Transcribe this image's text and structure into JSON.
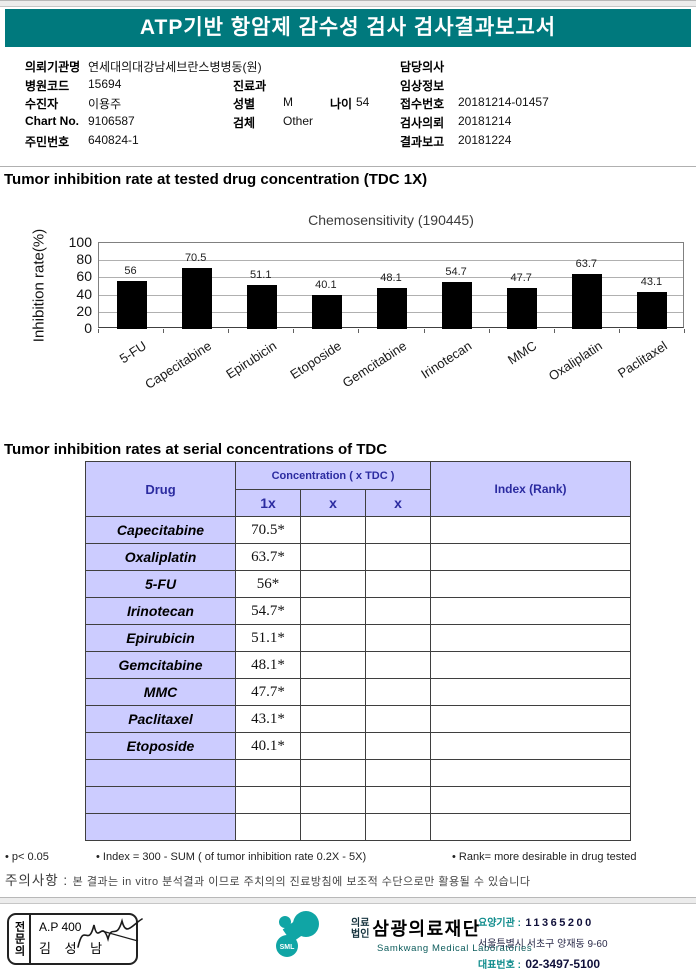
{
  "colors": {
    "teal": "#00797d",
    "lavender": "#ccccff",
    "header_text": "#2b2ba0",
    "logo_teal": "#10a5a5",
    "bar": "#000000"
  },
  "banner": {
    "title": "ATP기반 항암제 감수성 검사 검사결과보고서"
  },
  "patient": {
    "org_label": "의뢰기관명",
    "org_value": "연세대의대강남세브란스병병동(원)",
    "code_label": "병원코드",
    "code_value": "15694",
    "name_label": "수진자",
    "name_value": "이용주",
    "chart_label": "Chart No.",
    "chart_value": "9106587",
    "resident_label": "주민번호",
    "resident_value": "640824-1",
    "dept_label": "진료과",
    "dept_value": "",
    "sex_label": "성별",
    "sex_value": "M",
    "age_label": "나이",
    "age_value": "54",
    "specimen_label": "검체",
    "specimen_value": "Other",
    "doctor_label": "담당의사",
    "doctor_value": "",
    "clinical_label": "임상정보",
    "clinical_value": "",
    "receipt_label": "접수번호",
    "receipt_value": "20181214-01457",
    "request_label": "검사의뢰",
    "request_value": "20181214",
    "report_label": "결과보고",
    "report_value": "20181224"
  },
  "sections": {
    "chart_section_title": "Tumor inhibition rate at tested drug concentration (TDC 1X)",
    "table_section_title": "Tumor inhibition rates at serial concentrations of TDC"
  },
  "chart_data": {
    "type": "bar",
    "title": "Chemosensitivity (190445)",
    "ylabel": "Inhibition rate(%)",
    "ylim": [
      0,
      100
    ],
    "yticks": [
      0,
      20,
      40,
      60,
      80,
      100
    ],
    "grid": true,
    "legend": "none",
    "categories": [
      "5-FU",
      "Capecitabine",
      "Epirubicin",
      "Etoposide",
      "Gemcitabine",
      "Irinotecan",
      "MMC",
      "Oxaliplatin",
      "Paclitaxel"
    ],
    "values": [
      56,
      70.5,
      51.1,
      40.1,
      48.1,
      54.7,
      47.7,
      63.7,
      43.1
    ]
  },
  "table": {
    "drug_header": "Drug",
    "conc_header": "Concentration ( x TDC )",
    "conc_cols": [
      "1x",
      "x",
      "x"
    ],
    "index_header": "Index (Rank)",
    "rows": [
      {
        "drug": "Capecitabine",
        "v1": "70.5*",
        "v2": "",
        "v3": "",
        "index": ""
      },
      {
        "drug": "Oxaliplatin",
        "v1": "63.7*",
        "v2": "",
        "v3": "",
        "index": ""
      },
      {
        "drug": "5-FU",
        "v1": "56*",
        "v2": "",
        "v3": "",
        "index": ""
      },
      {
        "drug": "Irinotecan",
        "v1": "54.7*",
        "v2": "",
        "v3": "",
        "index": ""
      },
      {
        "drug": "Epirubicin",
        "v1": "51.1*",
        "v2": "",
        "v3": "",
        "index": ""
      },
      {
        "drug": "Gemcitabine",
        "v1": "48.1*",
        "v2": "",
        "v3": "",
        "index": ""
      },
      {
        "drug": "MMC",
        "v1": "47.7*",
        "v2": "",
        "v3": "",
        "index": ""
      },
      {
        "drug": "Paclitaxel",
        "v1": "43.1*",
        "v2": "",
        "v3": "",
        "index": ""
      },
      {
        "drug": "Etoposide",
        "v1": "40.1*",
        "v2": "",
        "v3": "",
        "index": ""
      },
      {
        "drug": "",
        "v1": "",
        "v2": "",
        "v3": "",
        "index": ""
      },
      {
        "drug": "",
        "v1": "",
        "v2": "",
        "v3": "",
        "index": ""
      },
      {
        "drug": "",
        "v1": "",
        "v2": "",
        "v3": "",
        "index": ""
      }
    ]
  },
  "footnotes": {
    "items": [
      "• p< 0.05",
      "• Index = 300 - SUM ( of tumor inhibition rate 0.2X  -  5X)",
      "• Rank= more desirable in drug tested"
    ]
  },
  "caution": {
    "label": "주의사항 :",
    "text": "본 결과는 in vitro 분석결과 이므로 주치의의 진료방침에 보조적 수단으로만 활용될 수 있습니다"
  },
  "footer": {
    "stamp": {
      "role": "전문의",
      "code": "A.P 400",
      "name": "김 성 남"
    },
    "logo": {
      "sml": "SML",
      "org_type_line1": "의료",
      "org_type_line2": "법인",
      "name": "삼광의료재단",
      "name_en": "Samkwang Medical Laboratories"
    },
    "info": {
      "care_org_label": "요양기관 :",
      "care_org_no": "11365200",
      "address": "서울특별시 서초구 양재동 9-60",
      "tel_label": "대표번호 :",
      "tel": "02-3497-5100"
    }
  }
}
